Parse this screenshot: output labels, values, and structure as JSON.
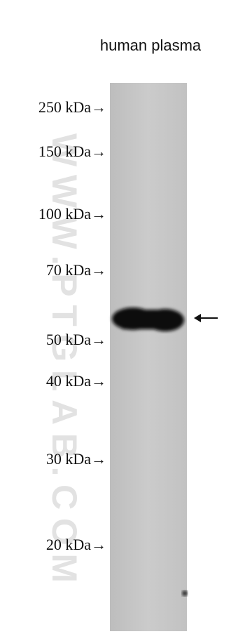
{
  "lane_label": "human plasma",
  "markers": [
    "250 kDa→",
    "150 kDa→",
    "100 kDa→",
    "70 kDa→",
    "50 kDa→",
    "40 kDa→",
    "30 kDa→",
    "20 kDa→"
  ],
  "watermark": "WWW.PTGLAB.COM"
}
